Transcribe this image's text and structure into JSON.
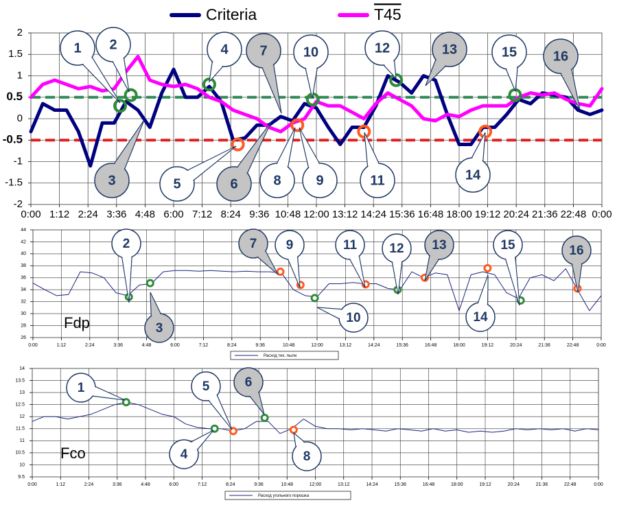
{
  "chart_data": [
    {
      "type": "line",
      "x": [
        0,
        0.5,
        1,
        1.5,
        2,
        2.5,
        3,
        3.5,
        4,
        4.5,
        5,
        5.5,
        6,
        6.5,
        7,
        7.5,
        8,
        8.5,
        9,
        9.5,
        10,
        10.5,
        11,
        11.5,
        12,
        12.5,
        13,
        13.5,
        14,
        14.5,
        15,
        15.5,
        16,
        16.5,
        17,
        17.5,
        18,
        18.5,
        19,
        19.5,
        20,
        20.5,
        21,
        21.5,
        22,
        22.5,
        23,
        23.5,
        24
      ],
      "series": [
        {
          "name": "Criteria",
          "color": "#000080",
          "values": [
            -0.3,
            0.35,
            0.2,
            0.2,
            -0.3,
            -1.1,
            -0.1,
            -0.1,
            0.4,
            0.2,
            -0.2,
            0.6,
            1.15,
            0.5,
            0.5,
            0.75,
            0.4,
            -0.5,
            -0.45,
            -0.15,
            -0.15,
            0.05,
            -0.05,
            0.35,
            0.25,
            -0.2,
            -0.6,
            -0.2,
            -0.2,
            0.3,
            1.0,
            0.85,
            0.6,
            1.0,
            0.9,
            0.1,
            -0.6,
            -0.6,
            -0.2,
            -0.2,
            0.1,
            0.45,
            0.35,
            0.6,
            0.55,
            0.5,
            0.2,
            0.1,
            0.2
          ]
        },
        {
          "name": "T45",
          "color": "#ff00ff",
          "overline": true,
          "values": [
            0.5,
            0.8,
            0.9,
            0.8,
            0.7,
            0.75,
            0.65,
            0.7,
            1.1,
            1.45,
            0.9,
            0.8,
            0.75,
            0.8,
            0.7,
            0.5,
            0.4,
            0.2,
            0.1,
            0.0,
            -0.2,
            -0.3,
            -0.1,
            0.0,
            0.4,
            0.3,
            0.3,
            0.15,
            0.0,
            0.35,
            0.6,
            0.45,
            0.3,
            0.0,
            -0.05,
            0.1,
            0.05,
            0.2,
            0.3,
            0.3,
            0.3,
            0.5,
            0.6,
            0.55,
            0.6,
            0.45,
            0.35,
            0.3,
            0.7
          ]
        }
      ],
      "xlim": [
        0,
        24
      ],
      "xticks": [
        {
          "value": 0,
          "label": "0:00"
        },
        {
          "value": 1.2,
          "label": "1:12"
        },
        {
          "value": 2.4,
          "label": "2:24"
        },
        {
          "value": 3.6,
          "label": "3:36"
        },
        {
          "value": 4.8,
          "label": "4:48"
        },
        {
          "value": 6,
          "label": "6:00"
        },
        {
          "value": 7.2,
          "label": "7:12"
        },
        {
          "value": 8.4,
          "label": "8:24"
        },
        {
          "value": 9.6,
          "label": "9:36"
        },
        {
          "value": 10.8,
          "label": "10:48"
        },
        {
          "value": 12,
          "label": "12:00"
        },
        {
          "value": 13.2,
          "label": "13:12"
        },
        {
          "value": 14.4,
          "label": "14:24"
        },
        {
          "value": 15.6,
          "label": "15:36"
        },
        {
          "value": 16.8,
          "label": "16:48"
        },
        {
          "value": 18,
          "label": "18:00"
        },
        {
          "value": 19.2,
          "label": "19:12"
        },
        {
          "value": 20.4,
          "label": "20:24"
        },
        {
          "value": 21.6,
          "label": "21:36"
        },
        {
          "value": 22.8,
          "label": "22:48"
        },
        {
          "value": 24,
          "label": "0:00"
        }
      ],
      "ylim": [
        -2,
        2
      ],
      "yticks": [
        -2,
        -1.5,
        -1,
        -0.5,
        0,
        0.5,
        1,
        1.5,
        2
      ],
      "grid": true,
      "thresholds": [
        {
          "value": 0.5,
          "color": "#2e8b57"
        },
        {
          "value": -0.5,
          "color": "#e02020"
        }
      ],
      "markers": [
        {
          "x": 3.75,
          "y": 0.3,
          "color": "#2e8b3a"
        },
        {
          "x": 4.2,
          "y": 0.55,
          "color": "#2e8b3a"
        },
        {
          "x": 7.5,
          "y": 0.8,
          "color": "#2e8b3a"
        },
        {
          "x": 11.85,
          "y": 0.45,
          "color": "#2e8b3a"
        },
        {
          "x": 15.35,
          "y": 0.9,
          "color": "#2e8b3a"
        },
        {
          "x": 20.35,
          "y": 0.55,
          "color": "#2e8b3a"
        },
        {
          "x": 8.7,
          "y": -0.6,
          "color": "#ff5a20"
        },
        {
          "x": 11.2,
          "y": -0.15,
          "color": "#ff5a20"
        },
        {
          "x": 14.0,
          "y": -0.3,
          "color": "#ff5a20"
        },
        {
          "x": 19.1,
          "y": -0.3,
          "color": "#ff5a20"
        }
      ],
      "annotations": [
        {
          "text": "1",
          "shaded": false
        },
        {
          "text": "2",
          "shaded": false
        },
        {
          "text": "3",
          "shaded": true
        },
        {
          "text": "4",
          "shaded": false
        },
        {
          "text": "5",
          "shaded": false
        },
        {
          "text": "6",
          "shaded": true
        },
        {
          "text": "7",
          "shaded": true
        },
        {
          "text": "8",
          "shaded": false
        },
        {
          "text": "9",
          "shaded": false
        },
        {
          "text": "10",
          "shaded": false
        },
        {
          "text": "11",
          "shaded": false
        },
        {
          "text": "12",
          "shaded": false
        },
        {
          "text": "13",
          "shaded": true
        },
        {
          "text": "14",
          "shaded": false
        },
        {
          "text": "15",
          "shaded": false
        },
        {
          "text": "16",
          "shaded": true
        }
      ]
    },
    {
      "type": "line",
      "title": "Fdp",
      "x": [
        0,
        0.5,
        1,
        1.5,
        2,
        2.5,
        3,
        3.5,
        4,
        4.5,
        5,
        5.5,
        6,
        6.5,
        7,
        7.5,
        8,
        8.5,
        9,
        9.5,
        10,
        10.5,
        11,
        11.5,
        12,
        12.5,
        13,
        13.5,
        14,
        14.5,
        15,
        15.5,
        16,
        16.5,
        17,
        17.5,
        18,
        18.5,
        19,
        19.5,
        20,
        20.5,
        21,
        21.5,
        22,
        22.5,
        23,
        23.5,
        24
      ],
      "series": [
        {
          "name": "Расход тех. пыли",
          "color": "#1a237e",
          "values": [
            35.1,
            34.0,
            33.0,
            33.2,
            37.0,
            36.8,
            36.0,
            33.5,
            33.0,
            34.8,
            35.0,
            37.0,
            37.2,
            37.2,
            37.1,
            37.2,
            37.1,
            37.0,
            37.1,
            37.0,
            37.0,
            36.8,
            34.0,
            33.0,
            32.8,
            35.0,
            35.0,
            35.2,
            35.0,
            35.0,
            34.2,
            34.0,
            37.0,
            36.0,
            36.8,
            36.5,
            30.5,
            36.5,
            37.0,
            36.5,
            33.5,
            32.5,
            36.0,
            36.5,
            35.5,
            37.5,
            34.0,
            30.5,
            33.0
          ]
        }
      ],
      "xlim": [
        0,
        24
      ],
      "xticks": [
        {
          "value": 0,
          "label": "0:00"
        },
        {
          "value": 1.2,
          "label": "1:12"
        },
        {
          "value": 2.4,
          "label": "2:24"
        },
        {
          "value": 3.6,
          "label": "3:36"
        },
        {
          "value": 4.8,
          "label": "4:48"
        },
        {
          "value": 6,
          "label": "6:00"
        },
        {
          "value": 7.2,
          "label": "7:12"
        },
        {
          "value": 8.4,
          "label": "8:24"
        },
        {
          "value": 9.6,
          "label": "9:36"
        },
        {
          "value": 10.8,
          "label": "10:48"
        },
        {
          "value": 12,
          "label": "12:00"
        },
        {
          "value": 13.2,
          "label": "13:12"
        },
        {
          "value": 14.4,
          "label": "14:24"
        },
        {
          "value": 15.6,
          "label": "15:36"
        },
        {
          "value": 16.8,
          "label": "16:48"
        },
        {
          "value": 18,
          "label": "18:00"
        },
        {
          "value": 19.2,
          "label": "19:12"
        },
        {
          "value": 20.4,
          "label": "20:24"
        },
        {
          "value": 21.6,
          "label": "21:36"
        },
        {
          "value": 22.8,
          "label": "22:48"
        },
        {
          "value": 24,
          "label": "0:00"
        }
      ],
      "ylim": [
        26,
        44
      ],
      "yticks": [
        26,
        28,
        30,
        32,
        34,
        36,
        38,
        40,
        42,
        44
      ],
      "grid": true,
      "markers": [
        {
          "x": 4.05,
          "y": 32.8,
          "color": "#2e8b3a"
        },
        {
          "x": 4.95,
          "y": 35.1,
          "color": "#2e8b3a"
        },
        {
          "x": 11.9,
          "y": 32.6,
          "color": "#2e8b3a"
        },
        {
          "x": 15.4,
          "y": 34.0,
          "color": "#2e8b3a"
        },
        {
          "x": 20.6,
          "y": 32.2,
          "color": "#2e8b3a"
        },
        {
          "x": 10.45,
          "y": 37.0,
          "color": "#ff5a20"
        },
        {
          "x": 11.3,
          "y": 34.8,
          "color": "#ff5a20"
        },
        {
          "x": 14.05,
          "y": 34.9,
          "color": "#ff5a20"
        },
        {
          "x": 16.55,
          "y": 36.0,
          "color": "#ff5a20"
        },
        {
          "x": 19.2,
          "y": 37.6,
          "color": "#ff5a20"
        },
        {
          "x": 23.0,
          "y": 34.2,
          "color": "#ff5a20"
        }
      ],
      "annotations": [
        {
          "text": "2",
          "shaded": false
        },
        {
          "text": "3",
          "shaded": true
        },
        {
          "text": "7",
          "shaded": true
        },
        {
          "text": "9",
          "shaded": false
        },
        {
          "text": "10",
          "shaded": false
        },
        {
          "text": "11",
          "shaded": false
        },
        {
          "text": "12",
          "shaded": false
        },
        {
          "text": "13",
          "shaded": true
        },
        {
          "text": "14",
          "shaded": false
        },
        {
          "text": "15",
          "shaded": false
        },
        {
          "text": "16",
          "shaded": true
        }
      ]
    },
    {
      "type": "line",
      "title": "Fco",
      "x": [
        0,
        0.5,
        1,
        1.5,
        2,
        2.5,
        3,
        3.5,
        4,
        4.5,
        5,
        5.5,
        6,
        6.5,
        7,
        7.5,
        8,
        8.5,
        9,
        9.5,
        10,
        10.5,
        11,
        11.5,
        12,
        12.5,
        13,
        13.5,
        14,
        14.5,
        15,
        15.5,
        16,
        16.5,
        17,
        17.5,
        18,
        18.5,
        19,
        19.5,
        20,
        20.5,
        21,
        21.5,
        22,
        22.5,
        23,
        23.5,
        24
      ],
      "series": [
        {
          "name": "Расход угольного порошка",
          "color": "#1a237e",
          "values": [
            11.8,
            12.0,
            12.0,
            11.9,
            12.0,
            12.1,
            12.3,
            12.5,
            12.6,
            12.5,
            12.3,
            12.1,
            12.0,
            11.7,
            11.55,
            11.5,
            11.5,
            11.4,
            11.5,
            11.8,
            11.8,
            11.3,
            11.5,
            11.9,
            11.6,
            11.5,
            11.5,
            11.45,
            11.5,
            11.45,
            11.4,
            11.5,
            11.45,
            11.4,
            11.5,
            11.4,
            11.45,
            11.35,
            11.4,
            11.35,
            11.4,
            11.5,
            11.45,
            11.5,
            11.45,
            11.5,
            11.4,
            11.5,
            11.45
          ]
        }
      ],
      "xlim": [
        0,
        24
      ],
      "xticks": [
        {
          "value": 0,
          "label": "0:00"
        },
        {
          "value": 1.2,
          "label": "1:12"
        },
        {
          "value": 2.4,
          "label": "2:24"
        },
        {
          "value": 3.6,
          "label": "3:36"
        },
        {
          "value": 4.8,
          "label": "4:48"
        },
        {
          "value": 6,
          "label": "6:00"
        },
        {
          "value": 7.2,
          "label": "7:12"
        },
        {
          "value": 8.4,
          "label": "8:24"
        },
        {
          "value": 9.6,
          "label": "9:36"
        },
        {
          "value": 10.8,
          "label": "10:48"
        },
        {
          "value": 12,
          "label": "12:00"
        },
        {
          "value": 13.2,
          "label": "13:12"
        },
        {
          "value": 14.4,
          "label": "14:24"
        },
        {
          "value": 15.6,
          "label": "15:36"
        },
        {
          "value": 16.8,
          "label": "16:48"
        },
        {
          "value": 18,
          "label": "18:00"
        },
        {
          "value": 19.2,
          "label": "19:12"
        },
        {
          "value": 20.4,
          "label": "20:24"
        },
        {
          "value": 21.6,
          "label": "21:36"
        },
        {
          "value": 22.8,
          "label": "22:48"
        },
        {
          "value": 24,
          "label": "0:00"
        }
      ],
      "ylim": [
        9.5,
        14
      ],
      "yticks": [
        9.5,
        10,
        10.5,
        11,
        11.5,
        12,
        12.5,
        13,
        13.5,
        14
      ],
      "grid": true,
      "markers": [
        {
          "x": 3.98,
          "y": 12.6,
          "color": "#2e8b3a"
        },
        {
          "x": 7.73,
          "y": 11.5,
          "color": "#2e8b3a"
        },
        {
          "x": 9.85,
          "y": 11.95,
          "color": "#2e8b3a"
        },
        {
          "x": 8.52,
          "y": 11.4,
          "color": "#ff5a20"
        },
        {
          "x": 11.08,
          "y": 11.45,
          "color": "#ff5a20"
        }
      ],
      "annotations": [
        {
          "text": "1",
          "shaded": false
        },
        {
          "text": "4",
          "shaded": false
        },
        {
          "text": "5",
          "shaded": false
        },
        {
          "text": "6",
          "shaded": true
        },
        {
          "text": "8",
          "shaded": false
        }
      ]
    }
  ]
}
